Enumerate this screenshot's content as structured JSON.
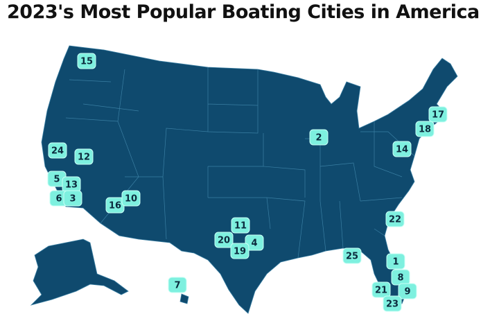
{
  "title": "2023's Most Popular Boating Cities in America",
  "markers": [
    15,
    2,
    17,
    18,
    14,
    24,
    12,
    5,
    13,
    6,
    3,
    16,
    10,
    11,
    20,
    4,
    19,
    22,
    25,
    1,
    8,
    21,
    9,
    23,
    7
  ]
}
